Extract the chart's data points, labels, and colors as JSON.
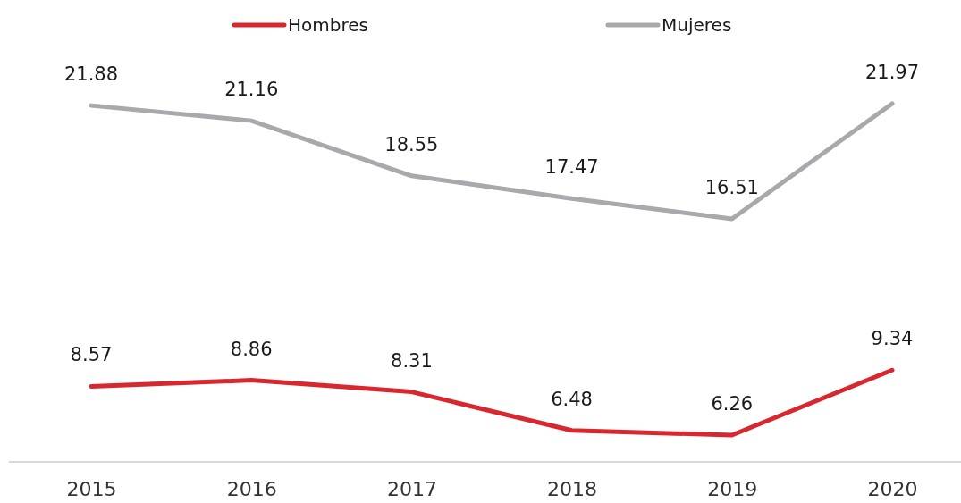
{
  "chart_data": {
    "type": "line",
    "categories": [
      "2015",
      "2016",
      "2017",
      "2018",
      "2019",
      "2020"
    ],
    "series": [
      {
        "name": "Hombres",
        "color": "#d7282f",
        "values": [
          8.57,
          8.86,
          8.31,
          6.48,
          6.26,
          9.34
        ]
      },
      {
        "name": "Mujeres",
        "color": "#a8a8ad",
        "values": [
          21.88,
          21.16,
          18.55,
          17.47,
          16.51,
          21.97
        ]
      }
    ],
    "tick_labels": "x",
    "data_labels": true,
    "legend": "top",
    "grid": false,
    "marker": "none",
    "line_style": "solid"
  }
}
